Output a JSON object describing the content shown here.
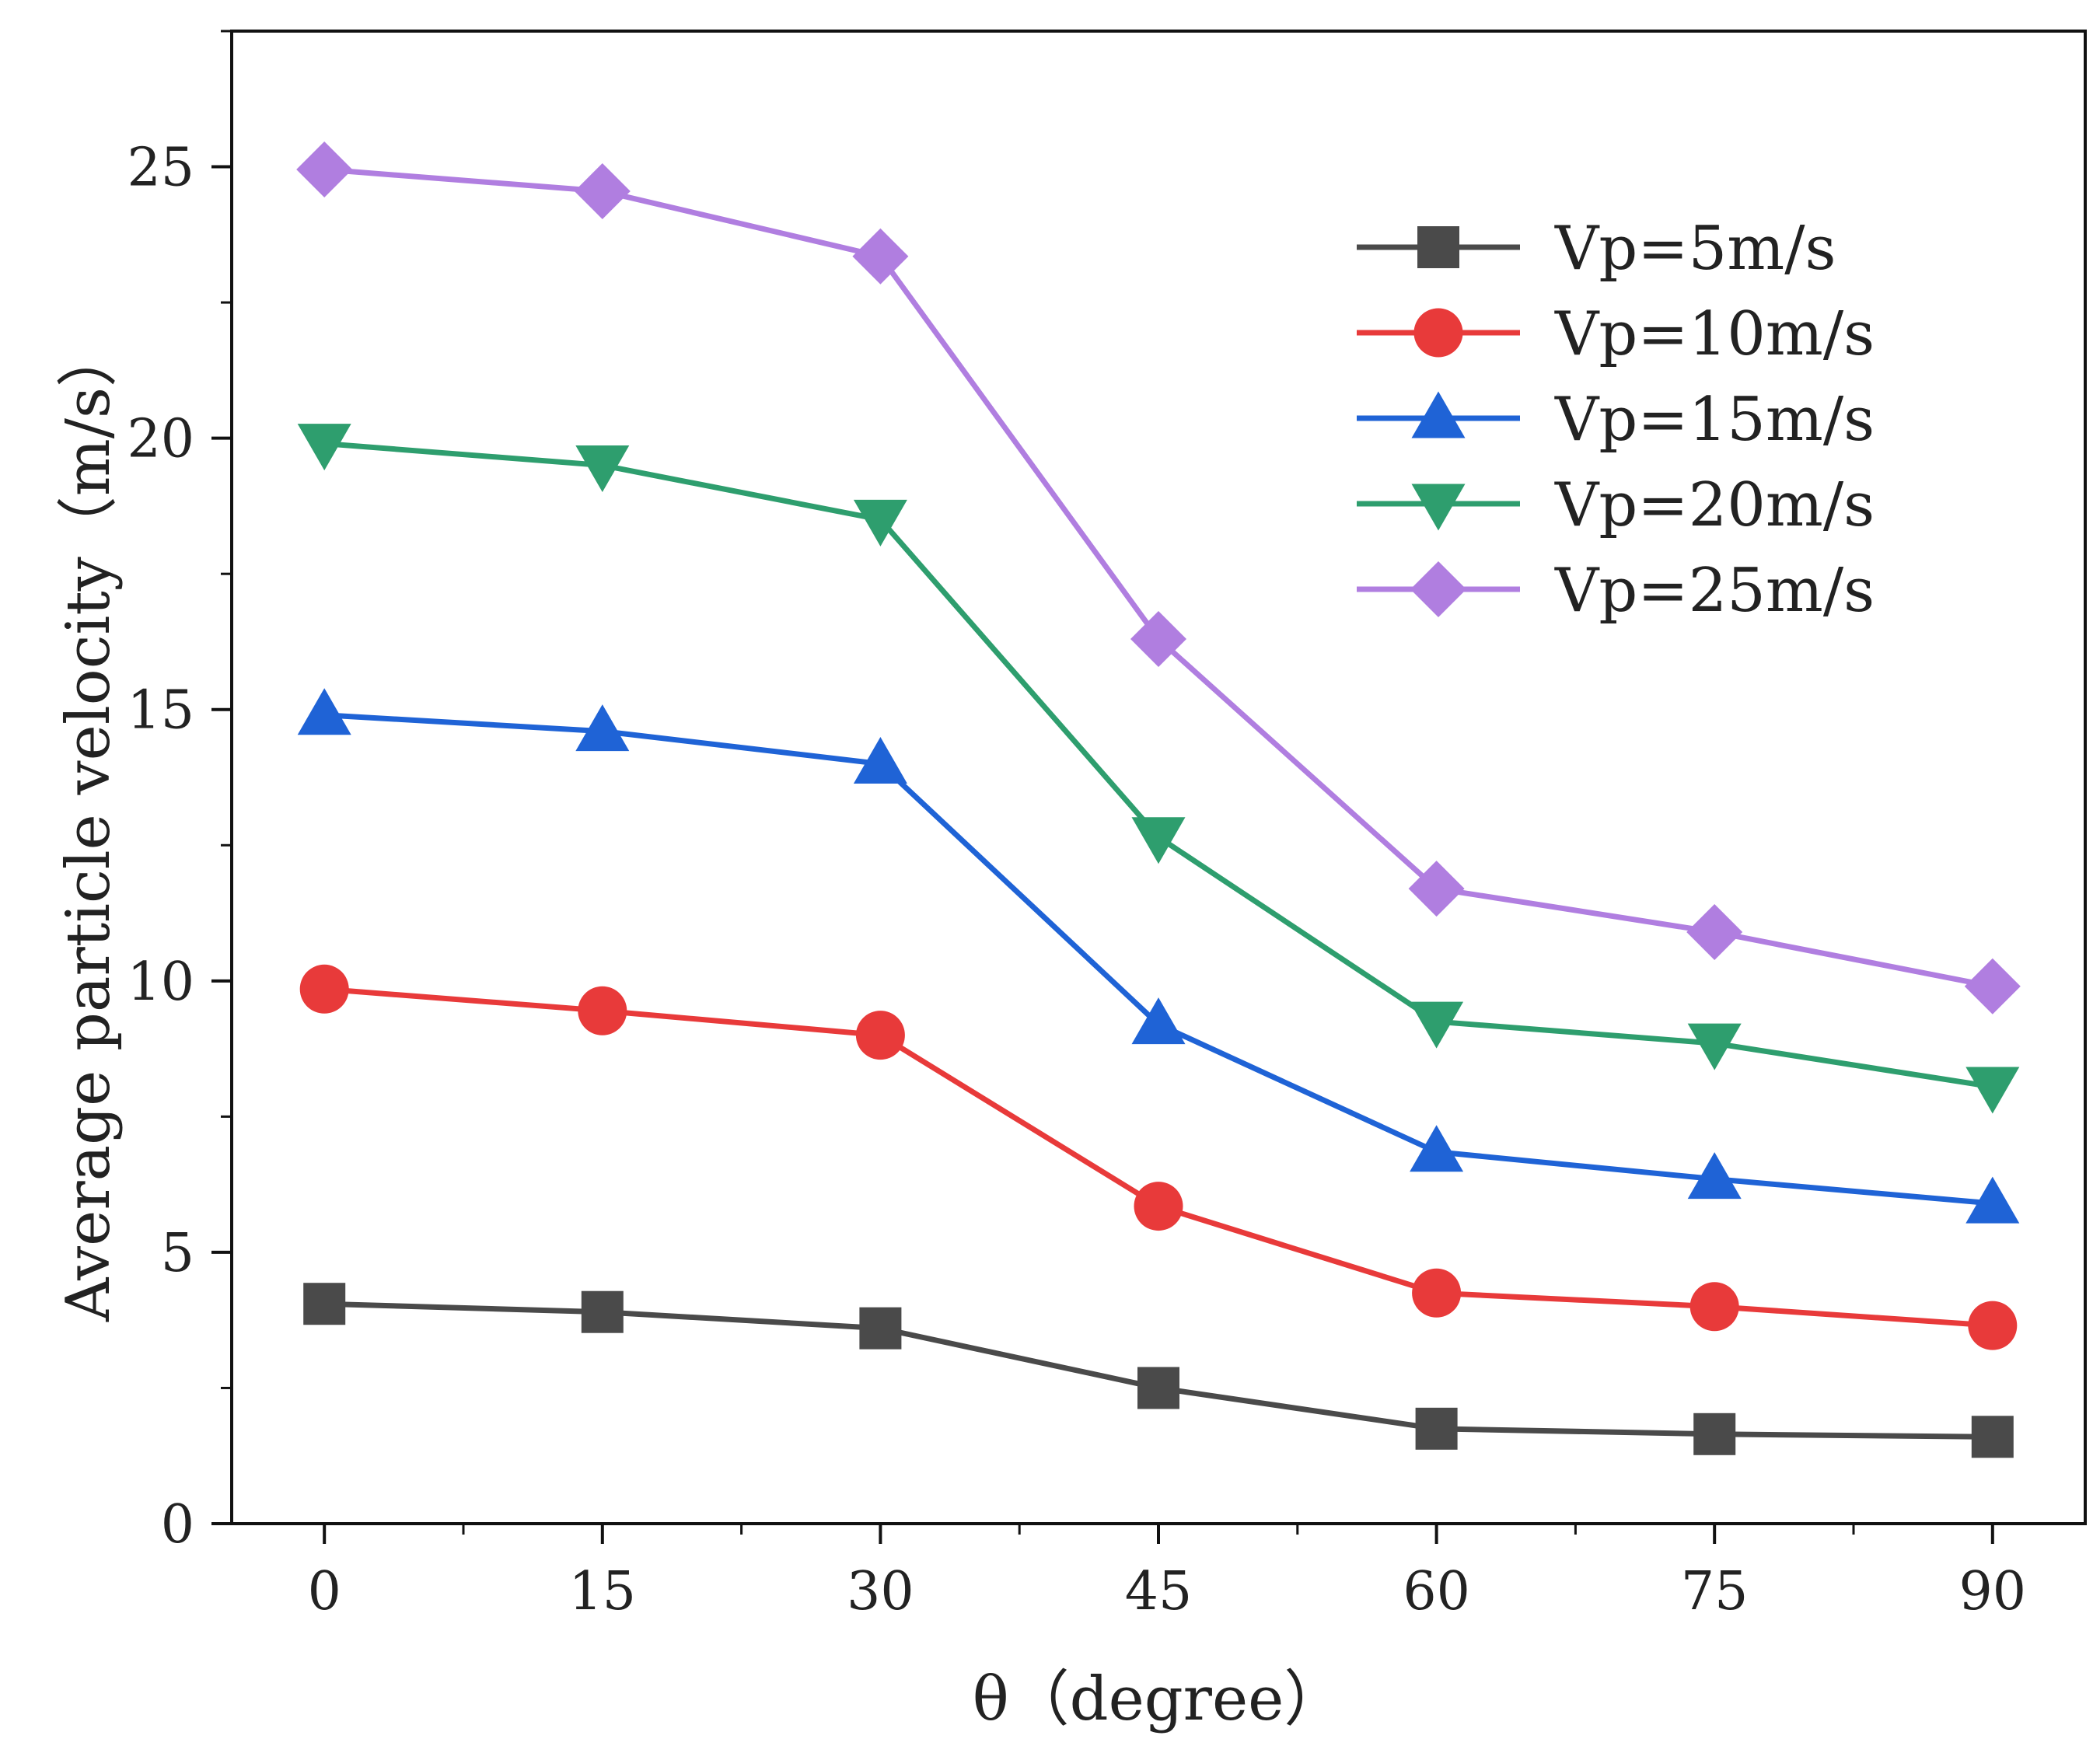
{
  "chart_data": {
    "type": "line",
    "title": "",
    "xlabel": "θ（degree）",
    "ylabel": "Average particle velocity（m/s）",
    "x": [
      0,
      15,
      30,
      45,
      60,
      75,
      90
    ],
    "xlim": [
      -5,
      95
    ],
    "ylim": [
      0,
      27.5
    ],
    "x_ticks": [
      "0",
      "15",
      "30",
      "45",
      "60",
      "75",
      "90"
    ],
    "y_ticks": [
      "0",
      "5",
      "10",
      "15",
      "20",
      "25"
    ],
    "grid": false,
    "legend_position": "top-right",
    "series": [
      {
        "name": "Vp=5m/s",
        "color": "#4a4a4a",
        "marker": "square",
        "values": [
          4.05,
          3.9,
          3.6,
          2.5,
          1.75,
          1.65,
          1.6
        ]
      },
      {
        "name": "Vp=10m/s",
        "color": "#e83a3a",
        "marker": "circle",
        "values": [
          9.85,
          9.45,
          9.0,
          5.85,
          4.25,
          4.0,
          3.65
        ]
      },
      {
        "name": "Vp=15m/s",
        "color": "#1f63d6",
        "marker": "triangle-up",
        "values": [
          14.9,
          14.6,
          14.0,
          9.2,
          6.85,
          6.35,
          5.9
        ]
      },
      {
        "name": "Vp=20m/s",
        "color": "#2e9e6e",
        "marker": "triangle-down",
        "values": [
          19.9,
          19.5,
          18.5,
          12.65,
          9.25,
          8.85,
          8.05
        ]
      },
      {
        "name": "Vp=25m/s",
        "color": "#b07ee0",
        "marker": "diamond",
        "values": [
          24.95,
          24.55,
          23.35,
          16.3,
          11.7,
          10.9,
          9.9
        ]
      }
    ]
  }
}
